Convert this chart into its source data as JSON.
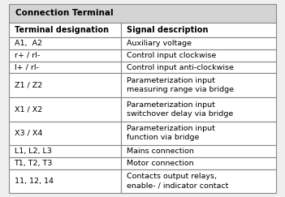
{
  "title": "Connection Terminal",
  "col1_header": "Terminal designation",
  "col2_header": "Signal description",
  "rows": [
    [
      "A1,  A2",
      "Auxiliary voltage"
    ],
    [
      "r+ / rl-",
      "Control input clockwise"
    ],
    [
      "l+ / rl-",
      "Control input anti-clockwise"
    ],
    [
      "Z1 / Z2",
      "Parameterization input\nmeasuring range via bridge"
    ],
    [
      "X1 / X2",
      "Parameterization input\nswitchover delay via bridge"
    ],
    [
      "X3 / X4",
      "Parameterization input\nfunction via bridge"
    ],
    [
      "L1, L2, L3",
      "Mains connection"
    ],
    [
      "T1, T2, T3",
      "Motor connection"
    ],
    [
      "11, 12, 14",
      "Contacts output relays,\nenable- / indicator contact"
    ]
  ],
  "title_bg": "#d4d4d4",
  "header_bg": "#ffffff",
  "row_bg": "#ffffff",
  "border_color": "#888888",
  "title_fontsize": 7.5,
  "header_fontsize": 7.0,
  "cell_fontsize": 6.8,
  "col_split": 0.42,
  "fig_bg": "#efefef"
}
